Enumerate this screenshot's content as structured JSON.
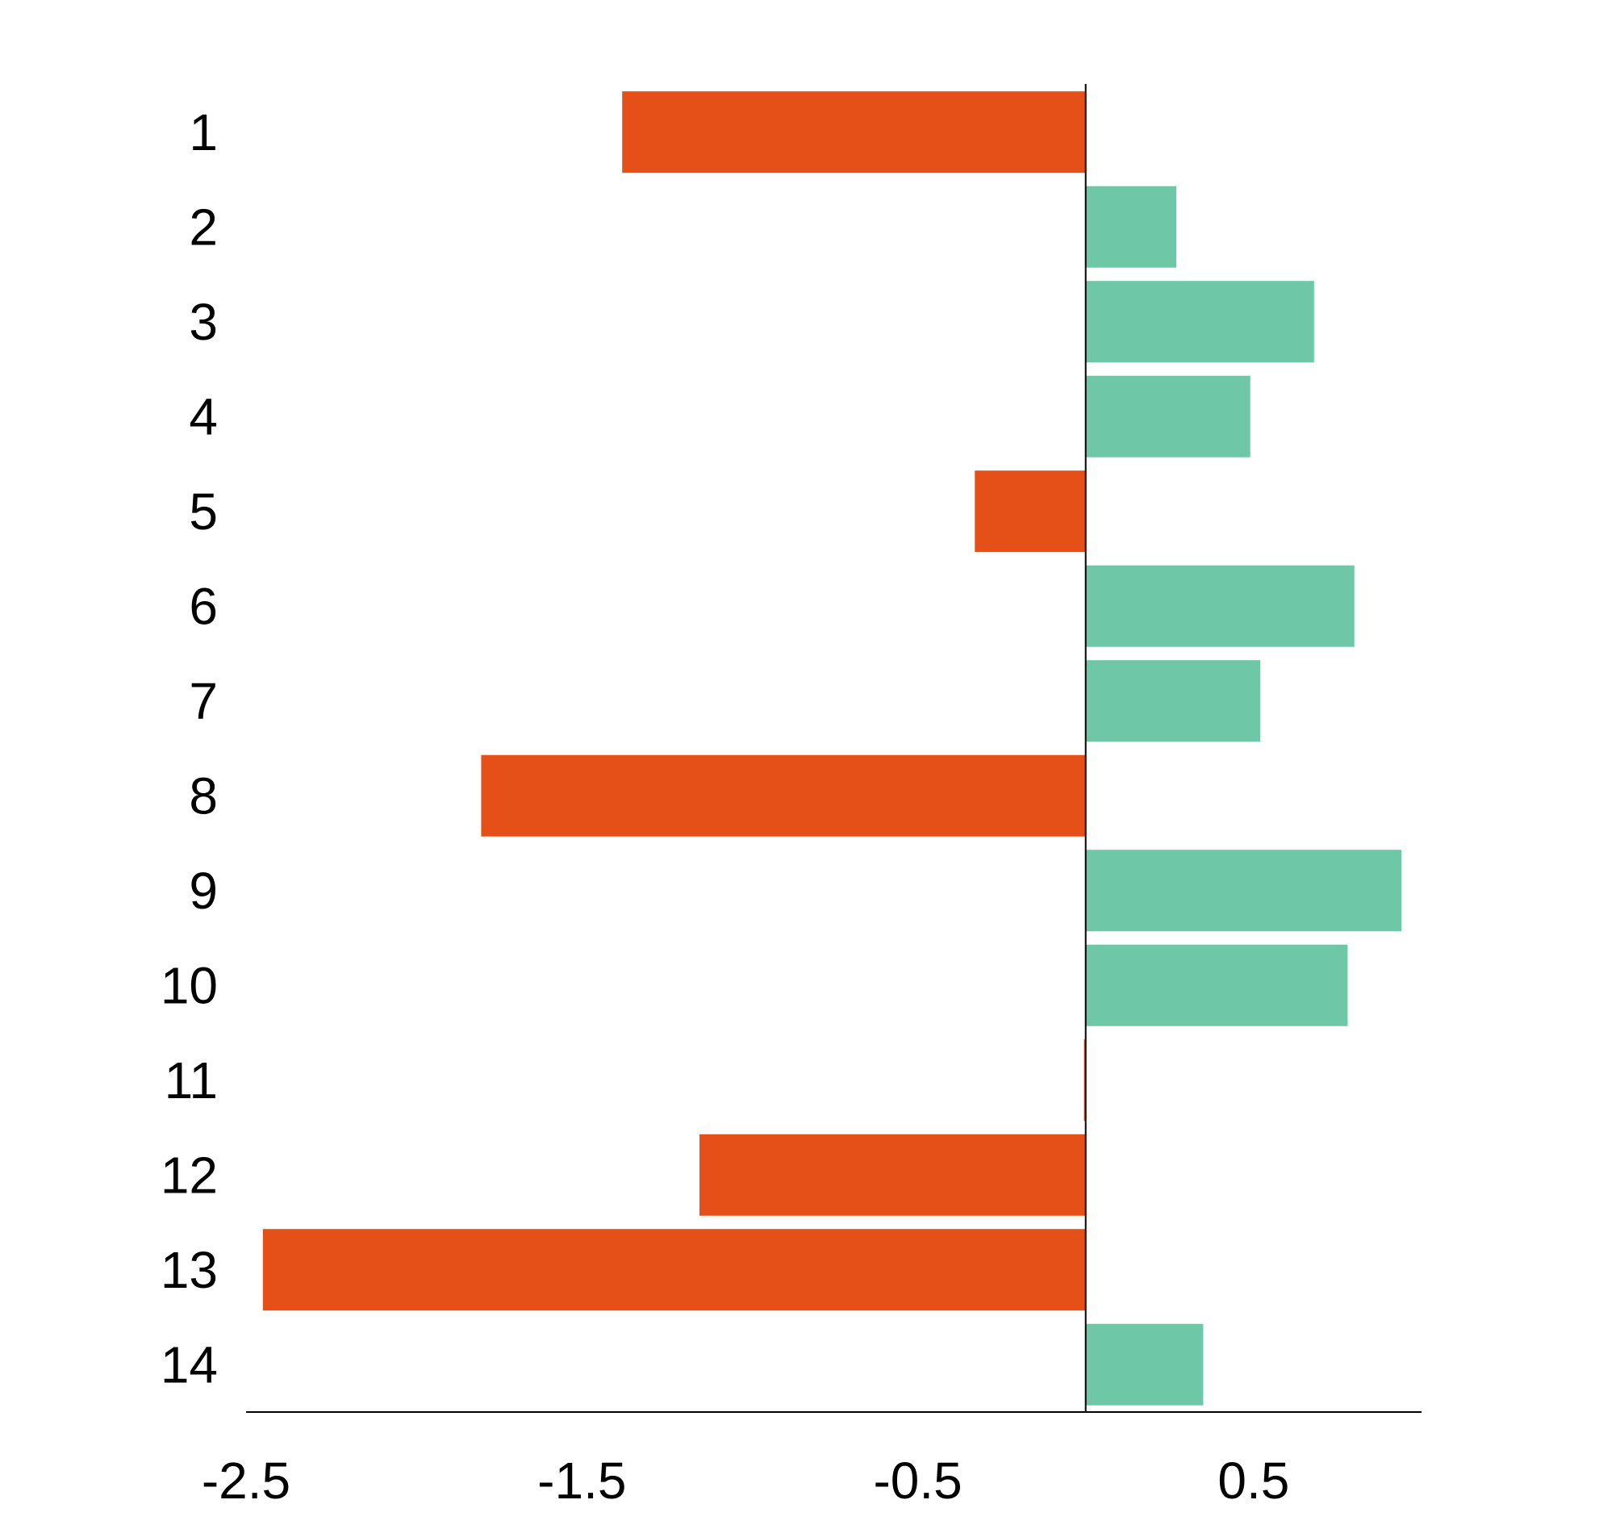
{
  "chart_data": {
    "type": "bar",
    "orientation": "horizontal",
    "categories": [
      "1",
      "2",
      "3",
      "4",
      "5",
      "6",
      "7",
      "8",
      "9",
      "10",
      "11",
      "12",
      "13",
      "14"
    ],
    "values": [
      -1.38,
      0.27,
      0.68,
      0.49,
      -0.33,
      0.8,
      0.52,
      -1.8,
      0.94,
      0.78,
      -0.005,
      -1.15,
      -2.45,
      0.35
    ],
    "xticks": [
      -2.5,
      -1.5,
      -0.5,
      0.5
    ],
    "xtick_labels": [
      "-2.5",
      "-1.5",
      "-0.5",
      "0.5"
    ],
    "xlim": [
      -2.5,
      1.0
    ],
    "title": "",
    "xlabel": "",
    "ylabel": "",
    "grid": false,
    "legend": "none",
    "colors": {
      "negative": "#E55019",
      "positive": "#6EC8A8",
      "axis": "#000000"
    }
  }
}
